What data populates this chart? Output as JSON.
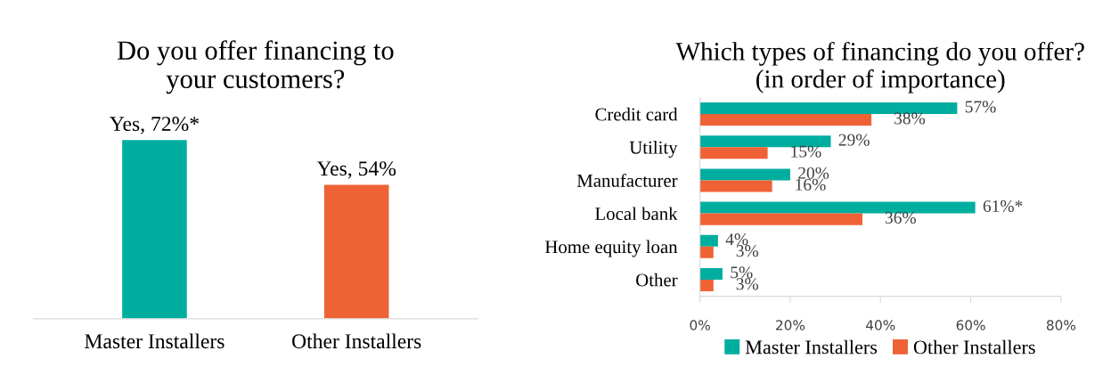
{
  "chart_data": [
    {
      "type": "bar",
      "title": "Do you offer financing to\nyour customers?",
      "categories": [
        "Master Installers",
        "Other Installers"
      ],
      "values": [
        72,
        54
      ],
      "colors": [
        "#00ae9f",
        "#ee6235"
      ],
      "value_labels": [
        "Yes, 72%*",
        "Yes, 54%"
      ],
      "tick_labels": "x",
      "grid": false
    },
    {
      "type": "bar",
      "orientation": "horizontal",
      "title": "Which types of financing do you offer?\n(in order of importance)",
      "categories": [
        "Credit card",
        "Utility",
        "Manufacturer",
        "Local bank",
        "Home equity loan",
        "Other"
      ],
      "series": [
        {
          "name": "Master Installers",
          "color": "#00ae9f",
          "values": [
            57,
            29,
            20,
            61,
            4,
            5
          ],
          "value_labels": [
            "57%",
            "29%",
            "20%",
            "61%*",
            "4%",
            "5%"
          ]
        },
        {
          "name": "Other Installers",
          "color": "#ee6235",
          "values": [
            38,
            15,
            16,
            36,
            3,
            3
          ],
          "value_labels": [
            "38%",
            "15%",
            "16%",
            "36%",
            "3%",
            "3%"
          ]
        }
      ],
      "xlim": [
        0,
        80
      ],
      "xticks": [
        {
          "value": 0,
          "label": "0%"
        },
        {
          "value": 20,
          "label": "20%"
        },
        {
          "value": 40,
          "label": "40%"
        },
        {
          "value": 60,
          "label": "60%"
        },
        {
          "value": 80,
          "label": "80%"
        }
      ],
      "grid": false,
      "legend": "bottom"
    }
  ]
}
